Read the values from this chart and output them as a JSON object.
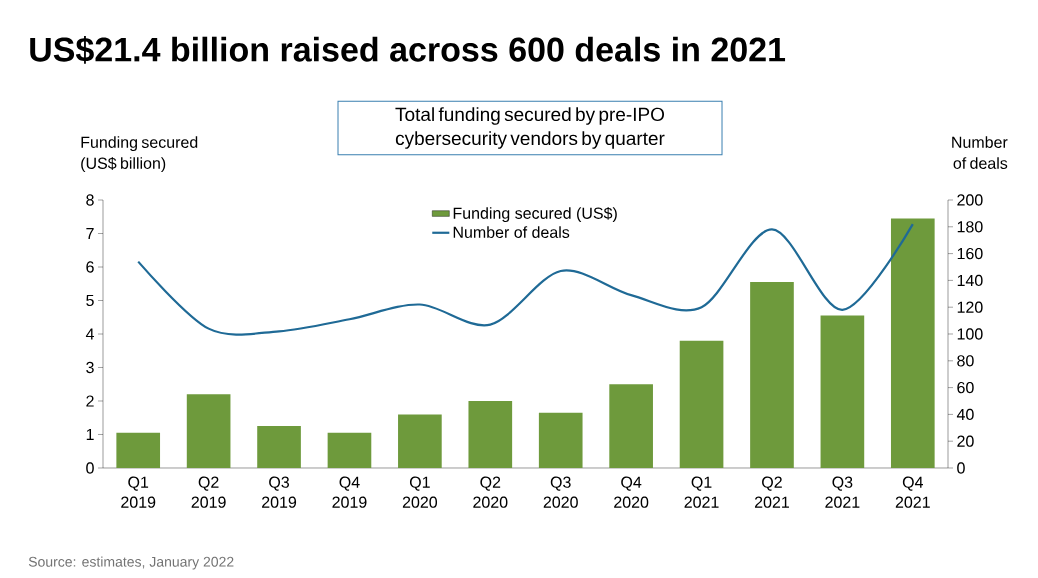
{
  "chart_data": {
    "type": "bar",
    "title": "US$21.4 billion raised across 600 deals in 2021",
    "subtitle": "Total funding secured by pre-IPO cybersecurity vendors by quarter",
    "ylabel": "Funding secured (US$ billion)",
    "y2label": "Number of deals",
    "categories": [
      "Q1 2019",
      "Q2 2019",
      "Q3 2019",
      "Q4 2019",
      "Q1 2020",
      "Q2 2020",
      "Q3 2020",
      "Q4 2020",
      "Q1 2021",
      "Q2 2021",
      "Q3 2021",
      "Q4 2021"
    ],
    "series": [
      {
        "name": "Funding secured (US$)",
        "color": "#6e9a3c",
        "values": [
          1.05,
          2.2,
          1.25,
          1.05,
          1.6,
          2.0,
          1.65,
          2.5,
          3.8,
          5.55,
          4.55,
          7.45
        ]
      },
      {
        "name": "Number of deals",
        "type": "line",
        "axis": "y2",
        "color": "#1f6a96",
        "values": [
          154,
          104,
          102,
          111,
          122,
          107,
          147,
          129,
          120,
          178,
          118,
          182
        ]
      }
    ],
    "ylim": [
      0,
      8
    ],
    "yticks": [
      0,
      1,
      2,
      3,
      4,
      5,
      6,
      7,
      8
    ],
    "y2lim": [
      0,
      200
    ],
    "y2ticks": [
      0,
      20,
      40,
      60,
      80,
      100,
      120,
      140,
      160,
      180,
      200
    ],
    "legend": "top",
    "grid": false,
    "annotations": [
      "Source: estimates, January 2022"
    ]
  }
}
